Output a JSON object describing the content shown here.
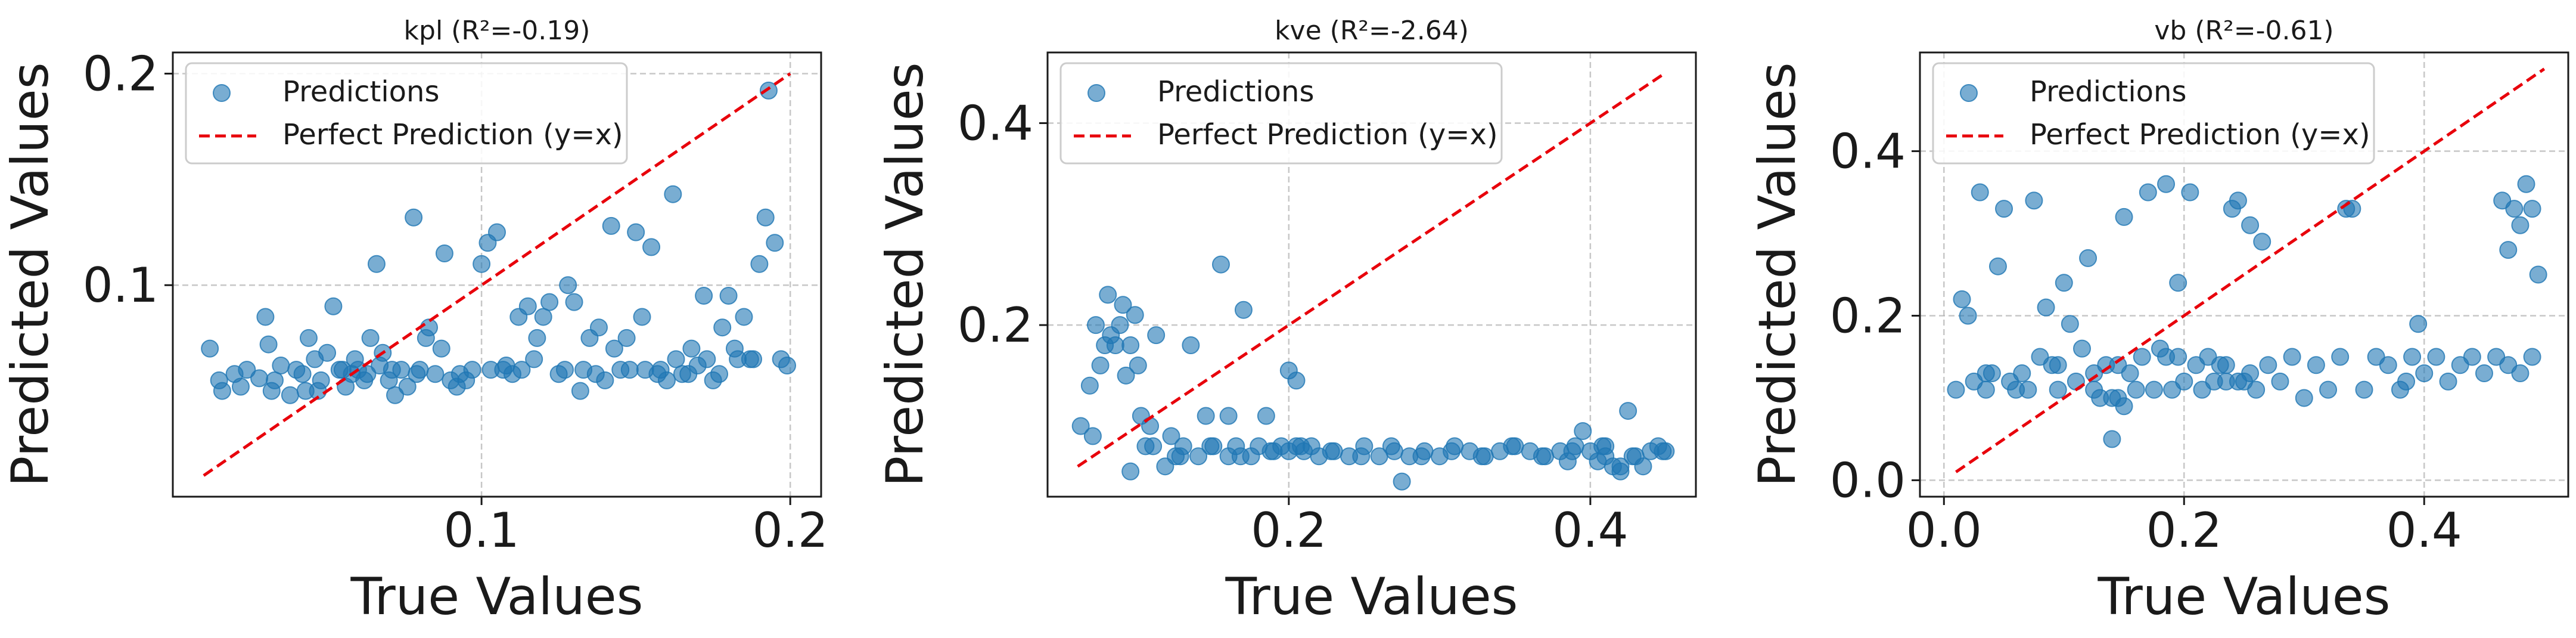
{
  "chart_data": [
    {
      "type": "scatter",
      "title": "kpl (R²=-0.19)",
      "xlabel": "True Values",
      "ylabel": "Predicted Values",
      "xlim": [
        0.0,
        0.21
      ],
      "ylim": [
        0.0,
        0.21
      ],
      "xticks": [
        0.1,
        0.2
      ],
      "xtick_labels": [
        "0.1",
        "0.2"
      ],
      "yticks": [
        0.1,
        0.2
      ],
      "ytick_labels": [
        "0.1",
        "0.2"
      ],
      "grid": true,
      "legend_position": "top-left",
      "legend": [
        "Predictions",
        "Perfect Prediction (y=x)"
      ],
      "reference_line": {
        "name": "Perfect Prediction (y=x)",
        "from": [
          0.01,
          0.01
        ],
        "to": [
          0.2,
          0.2
        ],
        "color": "#e8000b",
        "style": "dashed"
      },
      "series": [
        {
          "name": "Predictions",
          "color": "#1f77b4",
          "x": [
            0.012,
            0.015,
            0.016,
            0.02,
            0.022,
            0.024,
            0.028,
            0.03,
            0.032,
            0.035,
            0.038,
            0.04,
            0.042,
            0.044,
            0.046,
            0.048,
            0.05,
            0.052,
            0.054,
            0.056,
            0.058,
            0.06,
            0.062,
            0.064,
            0.066,
            0.068,
            0.07,
            0.072,
            0.074,
            0.076,
            0.078,
            0.08,
            0.082,
            0.085,
            0.088,
            0.09,
            0.092,
            0.095,
            0.1,
            0.102,
            0.105,
            0.108,
            0.11,
            0.112,
            0.115,
            0.118,
            0.12,
            0.122,
            0.125,
            0.128,
            0.13,
            0.132,
            0.135,
            0.138,
            0.14,
            0.142,
            0.145,
            0.148,
            0.15,
            0.152,
            0.155,
            0.158,
            0.16,
            0.162,
            0.165,
            0.168,
            0.17,
            0.172,
            0.175,
            0.178,
            0.18,
            0.182,
            0.185,
            0.188,
            0.19,
            0.192,
            0.195,
            0.197,
            0.199,
            0.031,
            0.033,
            0.055,
            0.067,
            0.079,
            0.083,
            0.097,
            0.103,
            0.113,
            0.127,
            0.137,
            0.147,
            0.153,
            0.163,
            0.173,
            0.183,
            0.187,
            0.043,
            0.047,
            0.059,
            0.063,
            0.071,
            0.087,
            0.093,
            0.107,
            0.117,
            0.133,
            0.143,
            0.157,
            0.167,
            0.177,
            0.193
          ],
          "y": [
            0.07,
            0.055,
            0.05,
            0.058,
            0.052,
            0.06,
            0.056,
            0.085,
            0.05,
            0.062,
            0.048,
            0.06,
            0.058,
            0.075,
            0.065,
            0.055,
            0.068,
            0.09,
            0.06,
            0.052,
            0.058,
            0.06,
            0.055,
            0.075,
            0.11,
            0.068,
            0.055,
            0.048,
            0.06,
            0.052,
            0.132,
            0.06,
            0.075,
            0.058,
            0.115,
            0.055,
            0.052,
            0.055,
            0.11,
            0.12,
            0.125,
            0.062,
            0.058,
            0.085,
            0.09,
            0.075,
            0.085,
            0.092,
            0.058,
            0.1,
            0.092,
            0.05,
            0.075,
            0.08,
            0.055,
            0.128,
            0.06,
            0.06,
            0.125,
            0.085,
            0.118,
            0.06,
            0.055,
            0.143,
            0.058,
            0.07,
            0.062,
            0.095,
            0.055,
            0.08,
            0.095,
            0.07,
            0.085,
            0.065,
            0.11,
            0.132,
            0.12,
            0.065,
            0.062,
            0.072,
            0.055,
            0.06,
            0.062,
            0.058,
            0.08,
            0.06,
            0.06,
            0.06,
            0.06,
            0.058,
            0.075,
            0.06,
            0.065,
            0.065,
            0.065,
            0.065,
            0.05,
            0.05,
            0.065,
            0.058,
            0.06,
            0.07,
            0.058,
            0.06,
            0.065,
            0.06,
            0.07,
            0.058,
            0.058,
            0.058,
            0.192
          ]
        }
      ]
    },
    {
      "type": "scatter",
      "title": "kve (R²=-2.64)",
      "xlabel": "True Values",
      "ylabel": "Predicted Values",
      "xlim": [
        0.04,
        0.47
      ],
      "ylim": [
        0.03,
        0.47
      ],
      "xticks": [
        0.2,
        0.4
      ],
      "xtick_labels": [
        "0.2",
        "0.4"
      ],
      "yticks": [
        0.2,
        0.4
      ],
      "ytick_labels": [
        "0.2",
        "0.4"
      ],
      "grid": true,
      "legend_position": "top-left",
      "legend": [
        "Predictions",
        "Perfect Prediction (y=x)"
      ],
      "reference_line": {
        "name": "Perfect Prediction (y=x)",
        "from": [
          0.06,
          0.06
        ],
        "to": [
          0.45,
          0.45
        ],
        "color": "#e8000b",
        "style": "dashed"
      },
      "series": [
        {
          "name": "Predictions",
          "color": "#1f77b4",
          "x": [
            0.062,
            0.068,
            0.072,
            0.075,
            0.078,
            0.08,
            0.082,
            0.085,
            0.088,
            0.09,
            0.092,
            0.095,
            0.098,
            0.1,
            0.102,
            0.105,
            0.108,
            0.112,
            0.118,
            0.122,
            0.125,
            0.13,
            0.135,
            0.14,
            0.145,
            0.15,
            0.155,
            0.16,
            0.165,
            0.17,
            0.175,
            0.18,
            0.185,
            0.19,
            0.195,
            0.2,
            0.205,
            0.21,
            0.215,
            0.22,
            0.23,
            0.24,
            0.25,
            0.26,
            0.27,
            0.275,
            0.28,
            0.29,
            0.3,
            0.31,
            0.32,
            0.33,
            0.34,
            0.35,
            0.36,
            0.37,
            0.38,
            0.385,
            0.39,
            0.395,
            0.4,
            0.405,
            0.41,
            0.415,
            0.42,
            0.425,
            0.43,
            0.435,
            0.44,
            0.445,
            0.45,
            0.07,
            0.095,
            0.11,
            0.128,
            0.148,
            0.168,
            0.188,
            0.208,
            0.228,
            0.248,
            0.268,
            0.288,
            0.308,
            0.328,
            0.348,
            0.368,
            0.388,
            0.408,
            0.428,
            0.448,
            0.16,
            0.2,
            0.205,
            0.41,
            0.42
          ],
          "y": [
            0.1,
            0.14,
            0.2,
            0.16,
            0.18,
            0.23,
            0.19,
            0.18,
            0.2,
            0.22,
            0.15,
            0.18,
            0.21,
            0.16,
            0.11,
            0.08,
            0.1,
            0.19,
            0.06,
            0.09,
            0.07,
            0.08,
            0.18,
            0.07,
            0.11,
            0.08,
            0.26,
            0.07,
            0.08,
            0.215,
            0.07,
            0.08,
            0.11,
            0.075,
            0.08,
            0.075,
            0.08,
            0.075,
            0.08,
            0.07,
            0.075,
            0.07,
            0.08,
            0.07,
            0.075,
            0.045,
            0.07,
            0.075,
            0.07,
            0.08,
            0.075,
            0.07,
            0.075,
            0.08,
            0.075,
            0.07,
            0.075,
            0.065,
            0.08,
            0.095,
            0.075,
            0.065,
            0.08,
            0.06,
            0.055,
            0.115,
            0.07,
            0.06,
            0.075,
            0.08,
            0.075,
            0.09,
            0.055,
            0.08,
            0.07,
            0.08,
            0.07,
            0.075,
            0.08,
            0.075,
            0.07,
            0.08,
            0.07,
            0.075,
            0.07,
            0.08,
            0.07,
            0.075,
            0.08,
            0.07,
            0.075,
            0.11,
            0.155,
            0.145,
            0.07,
            0.06
          ]
        }
      ]
    },
    {
      "type": "scatter",
      "title": "vb (R²=-0.61)",
      "xlabel": "True Values",
      "ylabel": "Predicted Values",
      "xlim": [
        -0.02,
        0.52
      ],
      "ylim": [
        -0.02,
        0.52
      ],
      "xticks": [
        0.0,
        0.2,
        0.4
      ],
      "xtick_labels": [
        "0.0",
        "0.2",
        "0.4"
      ],
      "yticks": [
        0.0,
        0.2,
        0.4
      ],
      "ytick_labels": [
        "0.0",
        "0.2",
        "0.4"
      ],
      "grid": true,
      "legend_position": "top-left",
      "legend": [
        "Predictions",
        "Perfect Prediction (y=x)"
      ],
      "reference_line": {
        "name": "Perfect Prediction (y=x)",
        "from": [
          0.01,
          0.01
        ],
        "to": [
          0.5,
          0.5
        ],
        "color": "#e8000b",
        "style": "dashed"
      },
      "series": [
        {
          "name": "Predictions",
          "color": "#1f77b4",
          "x": [
            0.01,
            0.015,
            0.02,
            0.025,
            0.03,
            0.035,
            0.04,
            0.045,
            0.05,
            0.055,
            0.06,
            0.065,
            0.07,
            0.075,
            0.08,
            0.085,
            0.09,
            0.095,
            0.1,
            0.105,
            0.11,
            0.115,
            0.12,
            0.125,
            0.13,
            0.135,
            0.14,
            0.145,
            0.15,
            0.155,
            0.16,
            0.165,
            0.17,
            0.175,
            0.18,
            0.185,
            0.19,
            0.195,
            0.2,
            0.205,
            0.21,
            0.215,
            0.22,
            0.225,
            0.23,
            0.235,
            0.24,
            0.245,
            0.25,
            0.255,
            0.26,
            0.27,
            0.28,
            0.29,
            0.3,
            0.31,
            0.32,
            0.33,
            0.34,
            0.35,
            0.36,
            0.37,
            0.38,
            0.39,
            0.4,
            0.41,
            0.42,
            0.43,
            0.44,
            0.45,
            0.46,
            0.47,
            0.48,
            0.49,
            0.495,
            0.035,
            0.095,
            0.125,
            0.145,
            0.185,
            0.195,
            0.235,
            0.245,
            0.255,
            0.265,
            0.335,
            0.385,
            0.395,
            0.465,
            0.47,
            0.475,
            0.48,
            0.485,
            0.49,
            0.14,
            0.15
          ],
          "y": [
            0.11,
            0.22,
            0.2,
            0.12,
            0.35,
            0.11,
            0.13,
            0.26,
            0.33,
            0.12,
            0.11,
            0.13,
            0.11,
            0.34,
            0.15,
            0.21,
            0.14,
            0.11,
            0.24,
            0.19,
            0.12,
            0.16,
            0.27,
            0.11,
            0.1,
            0.14,
            0.05,
            0.1,
            0.32,
            0.13,
            0.11,
            0.15,
            0.35,
            0.11,
            0.16,
            0.36,
            0.11,
            0.15,
            0.12,
            0.35,
            0.14,
            0.11,
            0.15,
            0.12,
            0.14,
            0.12,
            0.33,
            0.34,
            0.12,
            0.31,
            0.11,
            0.14,
            0.12,
            0.15,
            0.1,
            0.14,
            0.11,
            0.15,
            0.33,
            0.11,
            0.15,
            0.14,
            0.11,
            0.15,
            0.13,
            0.15,
            0.12,
            0.14,
            0.15,
            0.13,
            0.15,
            0.14,
            0.13,
            0.15,
            0.25,
            0.13,
            0.14,
            0.13,
            0.14,
            0.15,
            0.24,
            0.14,
            0.12,
            0.13,
            0.29,
            0.33,
            0.12,
            0.19,
            0.34,
            0.28,
            0.33,
            0.31,
            0.36,
            0.33,
            0.1,
            0.09
          ]
        }
      ]
    }
  ]
}
